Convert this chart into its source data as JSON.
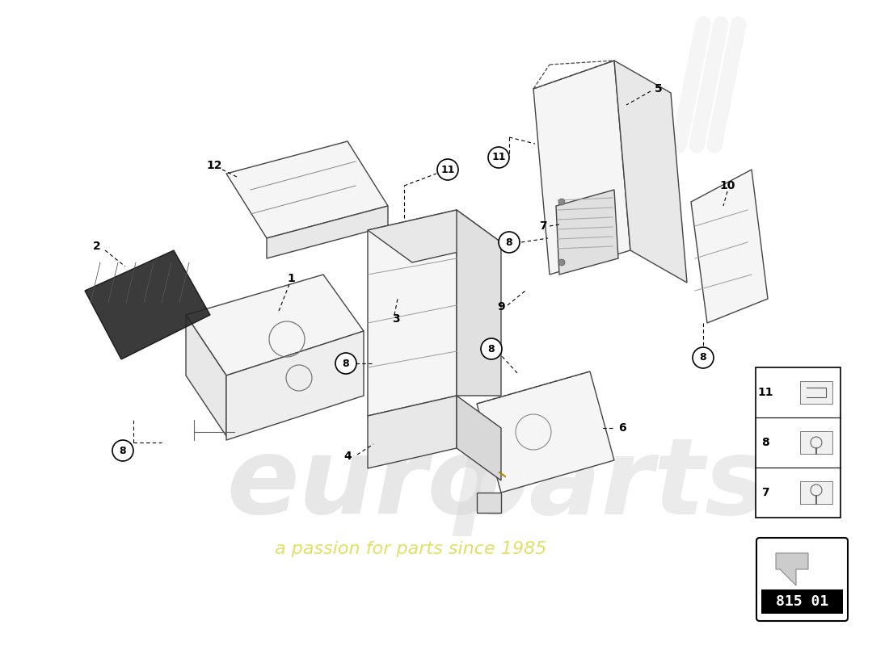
{
  "background_color": "#ffffff",
  "watermark_text": "europarts",
  "watermark_subtext": "a passion for parts since 1985",
  "part_number_box": "815 01",
  "lamborghini_watermark": true
}
